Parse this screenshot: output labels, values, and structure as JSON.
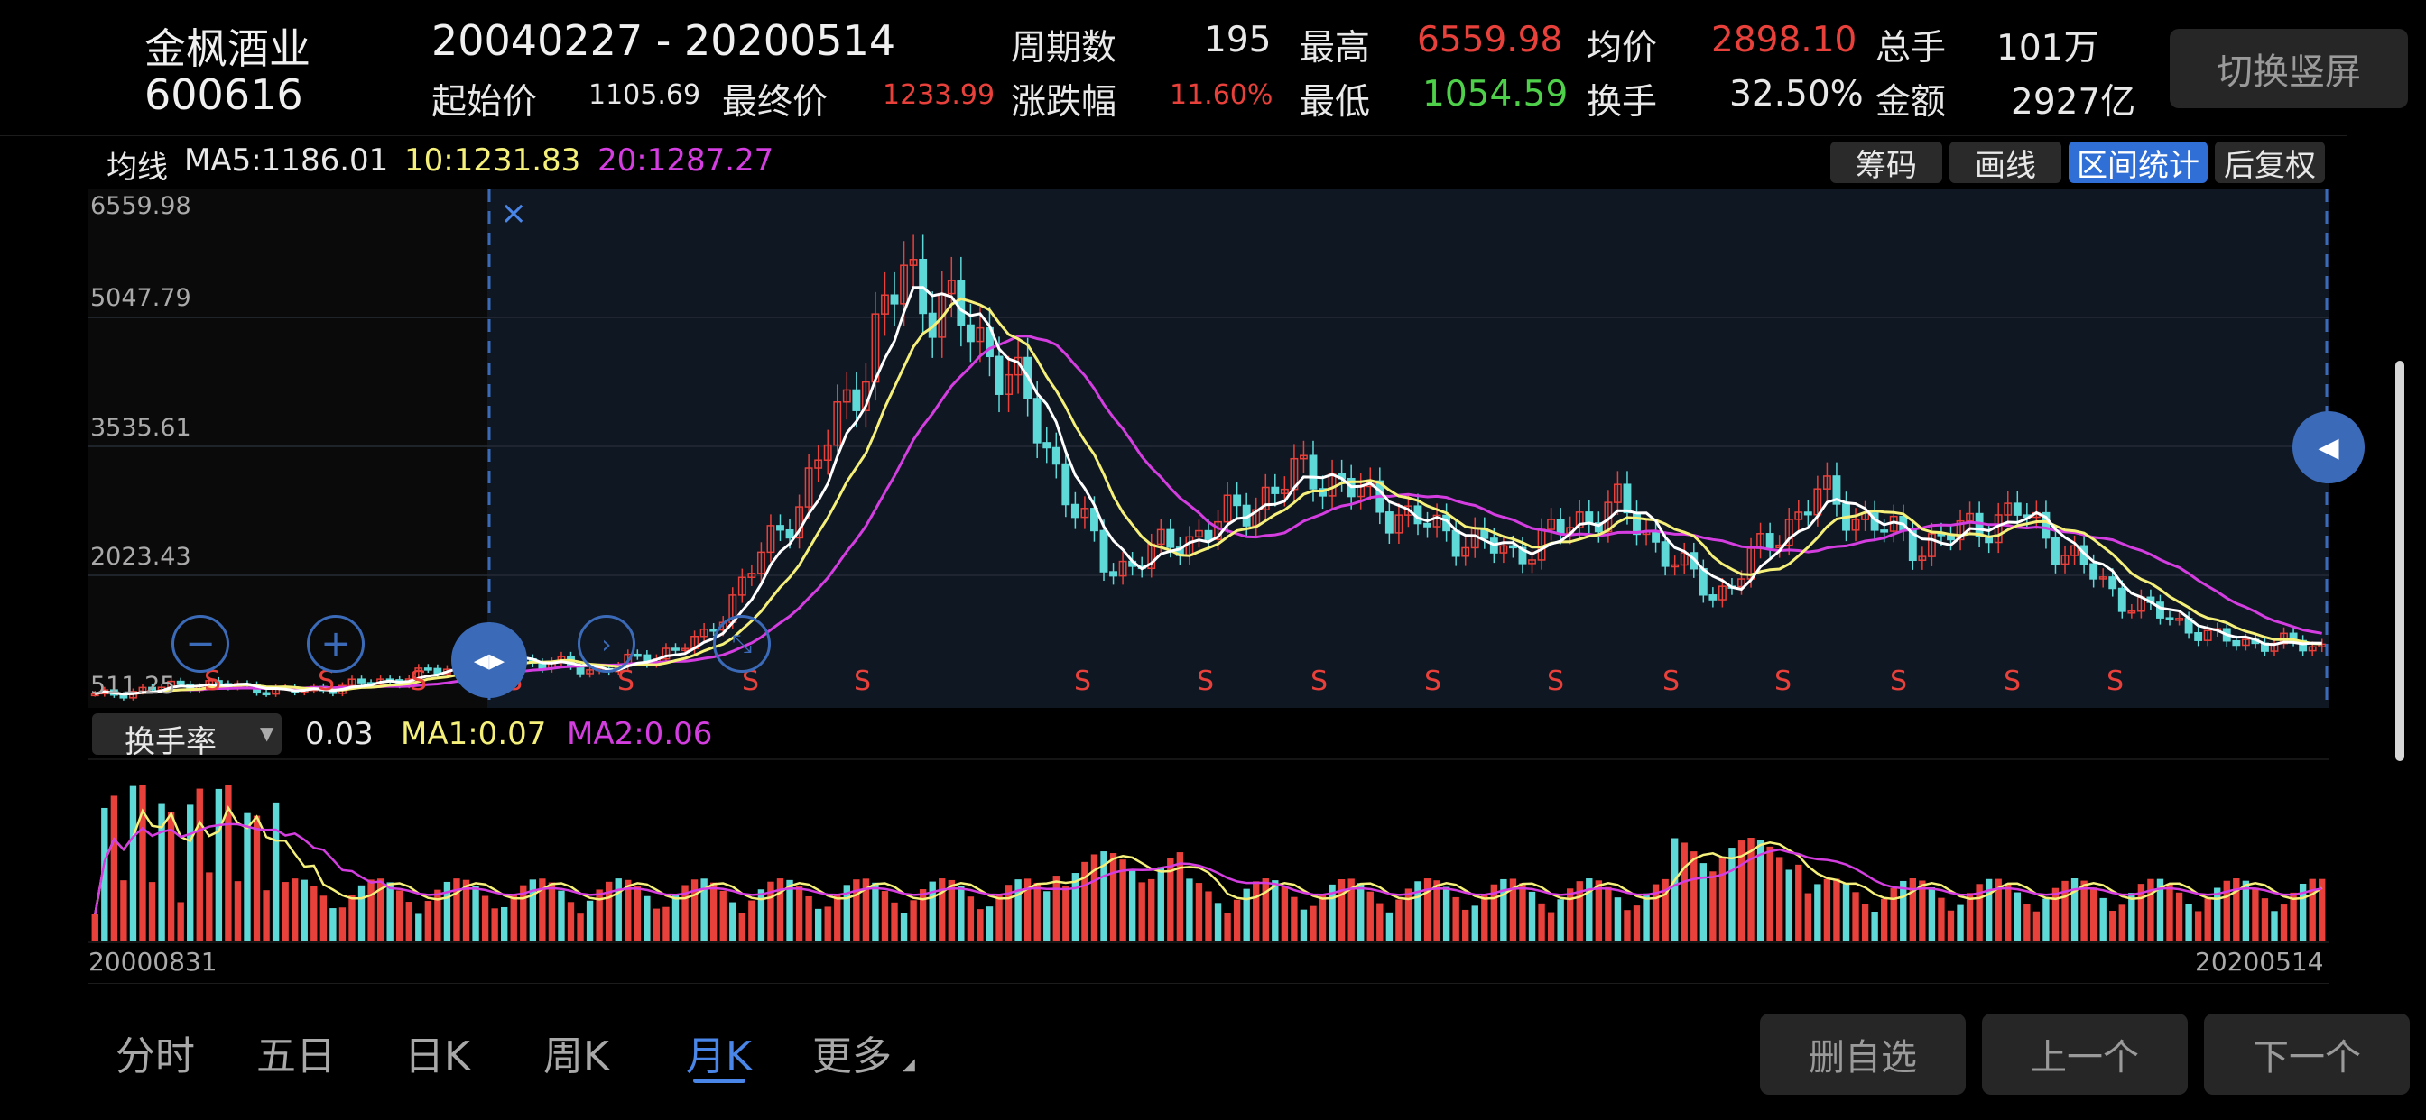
{
  "stock": {
    "name": "金枫酒业",
    "code": "600616"
  },
  "range": {
    "text": "20040227  - 20200514"
  },
  "stats": {
    "start_label": "起始价",
    "start_value": "1105.69",
    "end_label": "最终价",
    "end_value": "1233.99",
    "periods_label": "周期数",
    "periods_value": "195",
    "change_label": "涨跌幅",
    "change_value": "11.60%",
    "high_label": "最高",
    "high_value": "6559.98",
    "low_label": "最低",
    "low_value": "1054.59",
    "avg_label": "均价",
    "avg_value": "2898.10",
    "turnover_label": "换手",
    "turnover_value": "32.50%",
    "vol_label": "总手",
    "vol_value": "101万",
    "amount_label": "金额",
    "amount_value": "2927亿"
  },
  "switch_button": "切换竖屏",
  "ma": {
    "label": "均线",
    "ma5": "MA5:1186.01",
    "ma10": "10:1231.83",
    "ma20": "20:1287.27"
  },
  "tools": [
    "筹码",
    "画线",
    "区间统计",
    "后复权"
  ],
  "price_axis": [
    "6559.98",
    "5047.79",
    "3535.61",
    "2023.43",
    "511.25"
  ],
  "s_marker": "S",
  "indicator": {
    "select": "换手率",
    "value": "0.03",
    "ma1": "MA1:0.07",
    "ma2": "MA2:0.06"
  },
  "dates": {
    "start": "20000831",
    "end": "20200514"
  },
  "tabs": [
    "分时",
    "五日",
    "日K",
    "周K",
    "月K",
    "更多"
  ],
  "bottom_buttons": [
    "删自选",
    "上一个",
    "下一个"
  ],
  "colors": {
    "up": "#e8403a",
    "down": "#5fd8d8",
    "ma5": "#ffffff",
    "ma10": "#f5f07a",
    "ma20": "#d43ee0",
    "accent": "#3b6bb8",
    "active_tab": "#4a86e8"
  },
  "chart_data": {
    "type": "candlestick",
    "y_axis_ticks": [
      6559.98,
      5047.79,
      3535.61,
      2023.43,
      511.25
    ],
    "ylim": [
      511.25,
      6559.98
    ],
    "x_range": [
      "20000831",
      "20200514"
    ],
    "selected_range": [
      "20040227",
      "20200514"
    ],
    "close_series_approx": [
      {
        "x": "2000",
        "y": 650
      },
      {
        "x": "2001",
        "y": 800
      },
      {
        "x": "2002",
        "y": 700
      },
      {
        "x": "2003",
        "y": 850
      },
      {
        "x": "2004",
        "y": 1100
      },
      {
        "x": "2005",
        "y": 950
      },
      {
        "x": "2006",
        "y": 1300
      },
      {
        "x": "2007",
        "y": 3000
      },
      {
        "x": "2007-10",
        "y": 5600
      },
      {
        "x": "2008",
        "y": 4500
      },
      {
        "x": "2008-10",
        "y": 2100
      },
      {
        "x": "2009",
        "y": 2600
      },
      {
        "x": "2010",
        "y": 3300
      },
      {
        "x": "2011",
        "y": 2700
      },
      {
        "x": "2012",
        "y": 2300
      },
      {
        "x": "2013",
        "y": 2900
      },
      {
        "x": "2014",
        "y": 1800
      },
      {
        "x": "2015",
        "y": 3000
      },
      {
        "x": "2016",
        "y": 2400
      },
      {
        "x": "2017",
        "y": 2800
      },
      {
        "x": "2018",
        "y": 1800
      },
      {
        "x": "2019",
        "y": 1300
      },
      {
        "x": "2020-05",
        "y": 1234
      }
    ],
    "moving_averages": [
      "MA5",
      "MA10",
      "MA20"
    ]
  }
}
